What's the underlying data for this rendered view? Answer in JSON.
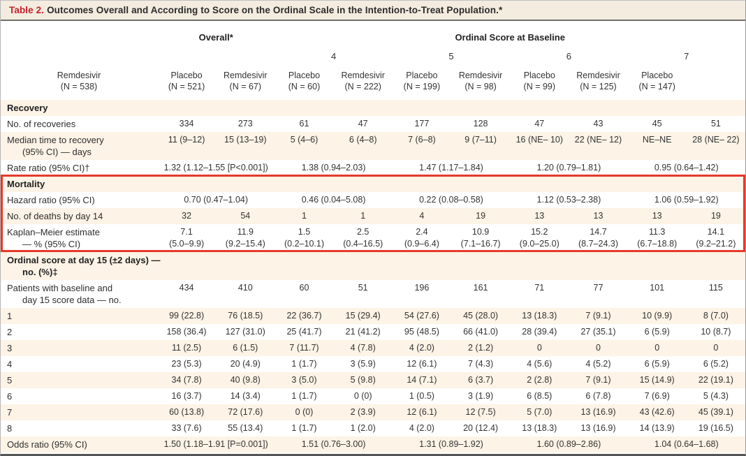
{
  "title": {
    "label": "Table 2.",
    "text": "Outcomes Overall and According to Score on the Ordinal Scale in the Intention-to-Treat Population.*"
  },
  "header": {
    "overall_label": "Overall*",
    "ordinal_label": "Ordinal Score at Baseline",
    "score_groups": [
      "4",
      "5",
      "6",
      "7"
    ],
    "columns": [
      {
        "drug": "Remdesivir",
        "n": "(N = 538)"
      },
      {
        "drug": "Placebo",
        "n": "(N = 521)"
      },
      {
        "drug": "Remdesivir",
        "n": "(N = 67)"
      },
      {
        "drug": "Placebo",
        "n": "(N = 60)"
      },
      {
        "drug": "Remdesivir",
        "n": "(N = 222)"
      },
      {
        "drug": "Placebo",
        "n": "(N = 199)"
      },
      {
        "drug": "Remdesivir",
        "n": "(N = 98)"
      },
      {
        "drug": "Placebo",
        "n": "(N = 99)"
      },
      {
        "drug": "Remdesivir",
        "n": "(N = 125)"
      },
      {
        "drug": "Placebo",
        "n": "(N = 147)"
      }
    ]
  },
  "colors": {
    "stripe_beige": "#fdf3e6",
    "title_bar_beige": "#f3ecdf",
    "table_label_red": "#c6222b",
    "highlight_box_red": "#e6392b"
  },
  "sections": [
    {
      "name": "recovery",
      "boxed": false,
      "rows": [
        {
          "kind": "section",
          "label_lines": [
            "Recovery"
          ],
          "shade": true,
          "span": 1,
          "cells": []
        },
        {
          "kind": "data",
          "label_lines": [
            "No. of recoveries"
          ],
          "shade": false,
          "span": 1,
          "cells": [
            "334",
            "273",
            "61",
            "47",
            "177",
            "128",
            "47",
            "43",
            "45",
            "51"
          ]
        },
        {
          "kind": "data",
          "label_lines": [
            "Median time to recovery",
            "(95% CI) — days"
          ],
          "shade": true,
          "span": 1,
          "cells": [
            "11 (9–12)",
            "15 (13–19)",
            "5 (4–6)",
            "6 (4–8)",
            "7 (6–8)",
            "9 (7–11)",
            "16 (NE– 10)",
            "22 (NE– 12)",
            "NE–NE",
            "28 (NE– 22)"
          ]
        },
        {
          "kind": "data",
          "label_lines": [
            "Rate ratio (95% CI)†"
          ],
          "shade": false,
          "span": 2,
          "cells": [
            "1.32 (1.12–1.55 [P<0.001])",
            "1.38 (0.94–2.03)",
            "1.47 (1.17–1.84)",
            "1.20 (0.79–1.81)",
            "0.95 (0.64–1.42)"
          ]
        }
      ]
    },
    {
      "name": "mortality",
      "boxed": true,
      "rows": [
        {
          "kind": "section",
          "label_lines": [
            "Mortality"
          ],
          "shade": true,
          "span": 1,
          "cells": []
        },
        {
          "kind": "data",
          "label_lines": [
            "Hazard ratio (95% CI)"
          ],
          "shade": false,
          "span": 2,
          "cells": [
            "0.70 (0.47–1.04)",
            "0.46 (0.04–5.08)",
            "0.22 (0.08–0.58)",
            "1.12 (0.53–2.38)",
            "1.06 (0.59–1.92)"
          ]
        },
        {
          "kind": "data",
          "label_lines": [
            "No. of deaths by day 14"
          ],
          "shade": true,
          "span": 1,
          "cells": [
            "32",
            "54",
            "1",
            "1",
            "4",
            "19",
            "13",
            "13",
            "13",
            "19"
          ]
        },
        {
          "kind": "data",
          "label_lines": [
            "Kaplan–Meier estimate",
            "— % (95% CI)"
          ],
          "shade": false,
          "span": 1,
          "cells": [
            "7.1\n(5.0–9.9)",
            "11.9\n(9.2–15.4)",
            "1.5\n(0.2–10.1)",
            "2.5\n(0.4–16.5)",
            "2.4\n(0.9–6.4)",
            "10.9\n(7.1–16.7)",
            "15.2\n(9.0–25.0)",
            "14.7\n(8.7–24.3)",
            "11.3\n(6.7–18.8)",
            "14.1\n(9.2–21.2)"
          ]
        }
      ]
    },
    {
      "name": "ordinal-score-day-15",
      "boxed": false,
      "rows": [
        {
          "kind": "section",
          "label_lines": [
            "Ordinal score at day 15 (±2 days) —",
            "no. (%)‡"
          ],
          "shade": true,
          "span": 1,
          "cells": []
        },
        {
          "kind": "data",
          "label_lines": [
            "Patients with baseline and",
            "day 15 score data — no."
          ],
          "shade": false,
          "span": 1,
          "cells": [
            "434",
            "410",
            "60",
            "51",
            "196",
            "161",
            "71",
            "77",
            "101",
            "115"
          ]
        },
        {
          "kind": "data",
          "label_lines": [
            "1"
          ],
          "shade": true,
          "span": 1,
          "cells": [
            "99 (22.8)",
            "76 (18.5)",
            "22 (36.7)",
            "15 (29.4)",
            "54 (27.6)",
            "45 (28.0)",
            "13 (18.3)",
            "7 (9.1)",
            "10 (9.9)",
            "8 (7.0)"
          ]
        },
        {
          "kind": "data",
          "label_lines": [
            "2"
          ],
          "shade": false,
          "span": 1,
          "cells": [
            "158 (36.4)",
            "127 (31.0)",
            "25 (41.7)",
            "21 (41.2)",
            "95 (48.5)",
            "66 (41.0)",
            "28 (39.4)",
            "27 (35.1)",
            "6 (5.9)",
            "10 (8.7)"
          ]
        },
        {
          "kind": "data",
          "label_lines": [
            "3"
          ],
          "shade": true,
          "span": 1,
          "cells": [
            "11 (2.5)",
            "6 (1.5)",
            "7 (11.7)",
            "4 (7.8)",
            "4 (2.0)",
            "2 (1.2)",
            "0",
            "0",
            "0",
            "0"
          ]
        },
        {
          "kind": "data",
          "label_lines": [
            "4"
          ],
          "shade": false,
          "span": 1,
          "cells": [
            "23 (5.3)",
            "20 (4.9)",
            "1 (1.7)",
            "3 (5.9)",
            "12 (6.1)",
            "7 (4.3)",
            "4 (5.6)",
            "4 (5.2)",
            "6 (5.9)",
            "6 (5.2)"
          ]
        },
        {
          "kind": "data",
          "label_lines": [
            "5"
          ],
          "shade": true,
          "span": 1,
          "cells": [
            "34 (7.8)",
            "40 (9.8)",
            "3 (5.0)",
            "5 (9.8)",
            "14 (7.1)",
            "6 (3.7)",
            "2 (2.8)",
            "7 (9.1)",
            "15 (14.9)",
            "22 (19.1)"
          ]
        },
        {
          "kind": "data",
          "label_lines": [
            "6"
          ],
          "shade": false,
          "span": 1,
          "cells": [
            "16 (3.7)",
            "14 (3.4)",
            "1 (1.7)",
            "0 (0)",
            "1 (0.5)",
            "3 (1.9)",
            "6 (8.5)",
            "6 (7.8)",
            "7 (6.9)",
            "5 (4.3)"
          ]
        },
        {
          "kind": "data",
          "label_lines": [
            "7"
          ],
          "shade": true,
          "span": 1,
          "cells": [
            "60 (13.8)",
            "72 (17.6)",
            "0 (0)",
            "2 (3.9)",
            "12 (6.1)",
            "12 (7.5)",
            "5 (7.0)",
            "13 (16.9)",
            "43 (42.6)",
            "45 (39.1)"
          ]
        },
        {
          "kind": "data",
          "label_lines": [
            "8"
          ],
          "shade": false,
          "span": 1,
          "cells": [
            "33 (7.6)",
            "55 (13.4)",
            "1 (1.7)",
            "1 (2.0)",
            "4 (2.0)",
            "20 (12.4)",
            "13 (18.3)",
            "13 (16.9)",
            "14 (13.9)",
            "19 (16.5)"
          ]
        },
        {
          "kind": "data",
          "label_lines": [
            "Odds ratio (95% CI)"
          ],
          "shade": true,
          "span": 2,
          "cells": [
            "1.50 (1.18–1.91 [P=0.001])",
            "1.51 (0.76–3.00)",
            "1.31 (0.89–1.92)",
            "1.60 (0.89–2.86)",
            "1.04 (0.64–1.68)"
          ]
        }
      ]
    }
  ]
}
